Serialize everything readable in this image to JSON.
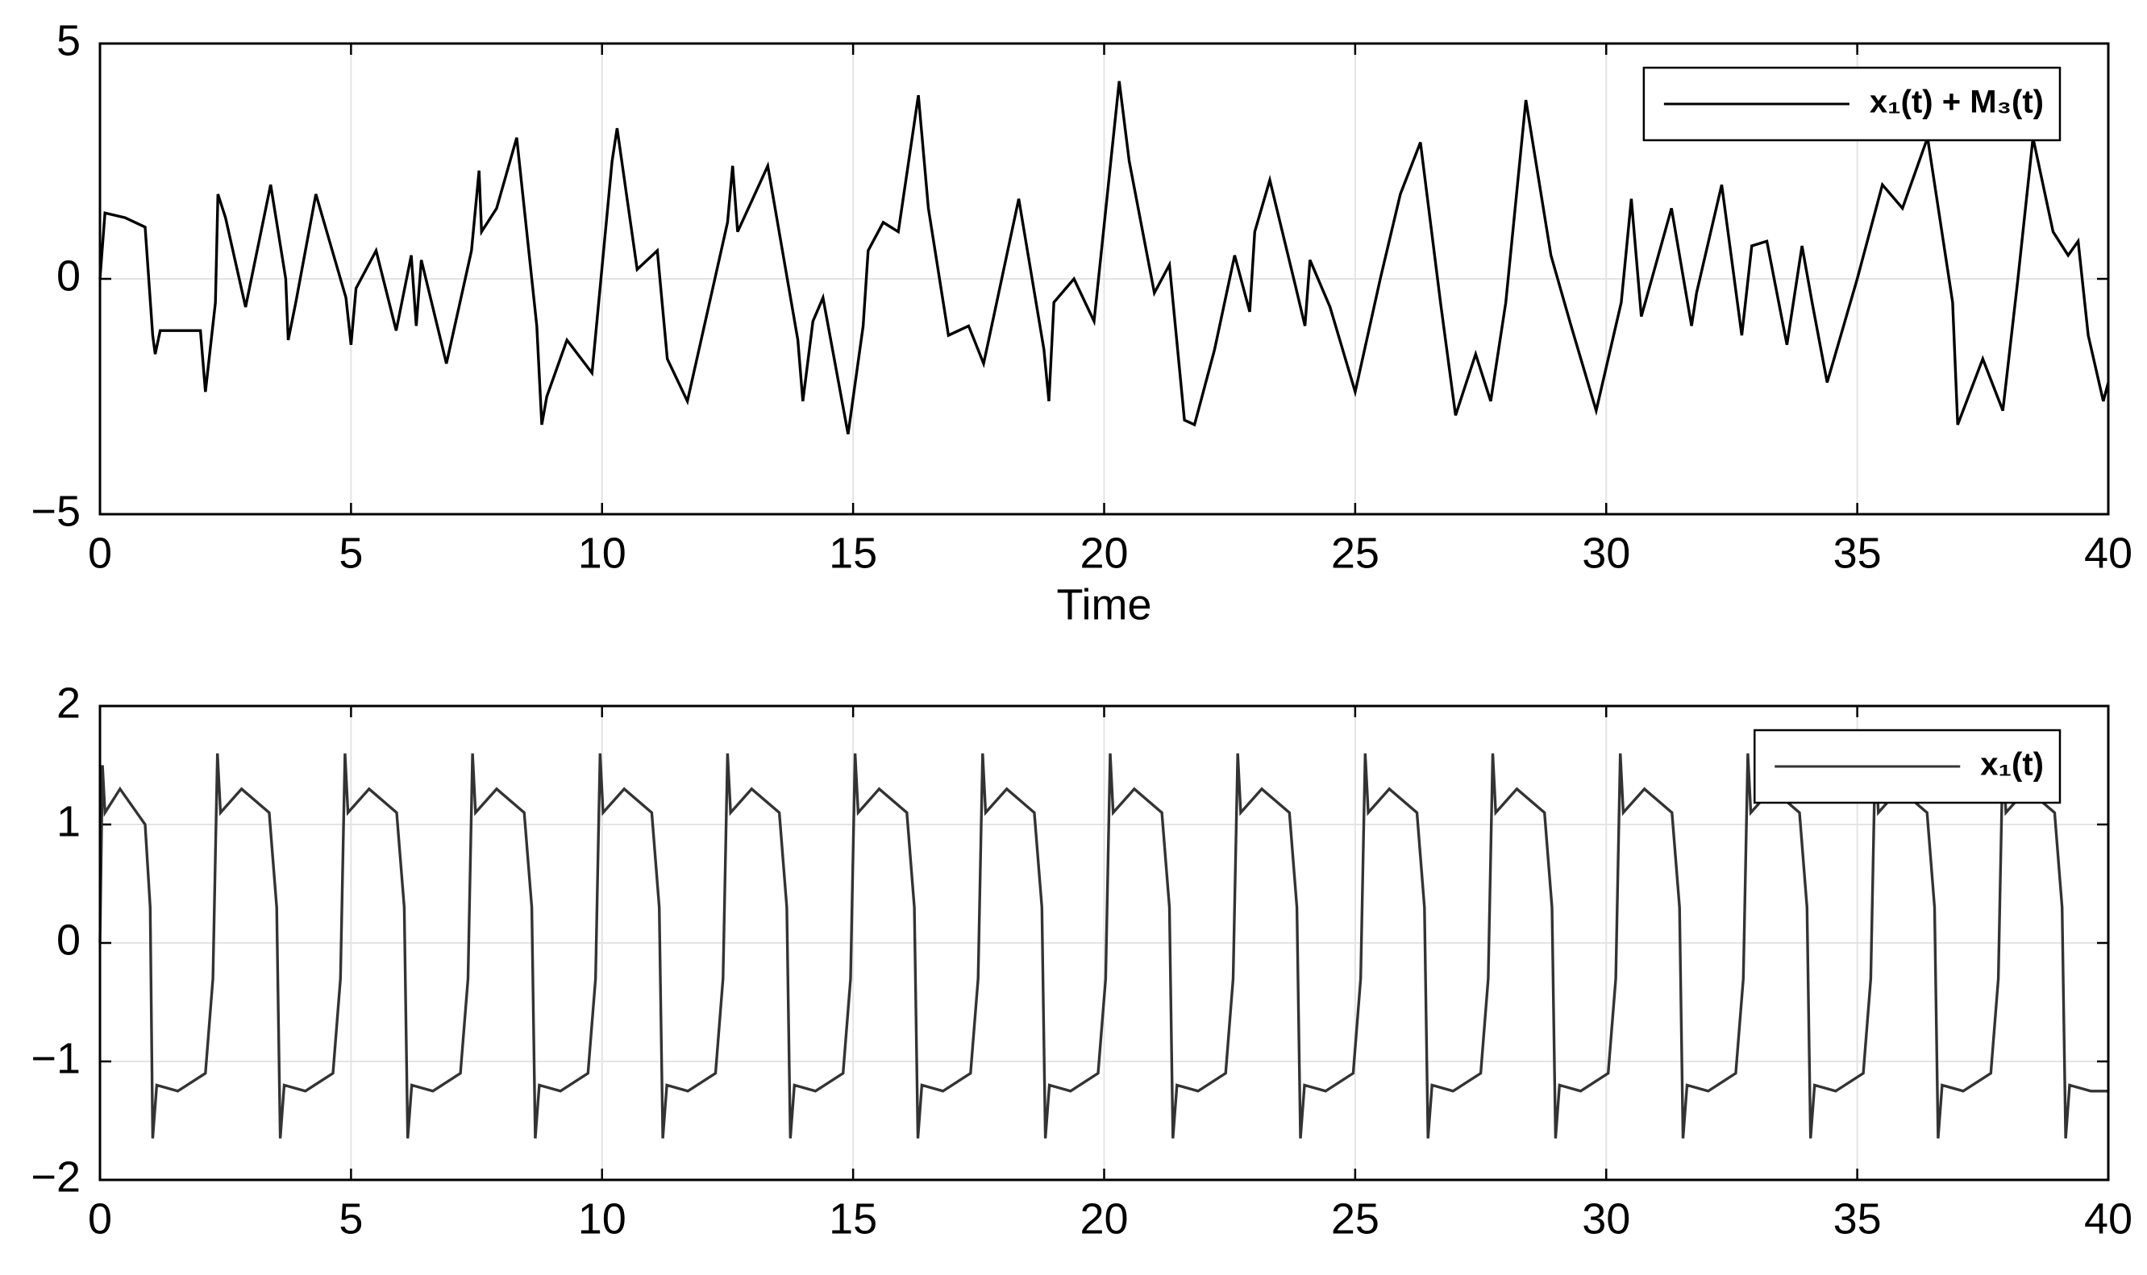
{
  "chart_data": [
    {
      "type": "line",
      "xlabel": "Time",
      "xlim": [
        0,
        40
      ],
      "ylim": [
        -5,
        5
      ],
      "xticks": [
        0,
        5,
        10,
        15,
        20,
        25,
        30,
        35,
        40
      ],
      "yticks": [
        {
          "value": -5,
          "label": "−5"
        },
        0,
        5
      ],
      "grid": true,
      "legend": "upper right",
      "series": [
        {
          "name": "x₁(t) + M₃(t)",
          "color": "#000000",
          "x": [
            0,
            0.1,
            0.5,
            0.9,
            1.05,
            1.1,
            1.2,
            2.0,
            2.1,
            2.3,
            2.35,
            2.5,
            2.9,
            3.4,
            3.7,
            3.75,
            3.9,
            4.3,
            4.9,
            5.0,
            5.1,
            5.5,
            5.9,
            6.2,
            6.3,
            6.4,
            6.9,
            7.4,
            7.55,
            7.6,
            7.9,
            8.3,
            8.7,
            8.8,
            8.9,
            9.3,
            9.8,
            10.2,
            10.3,
            10.7,
            11.1,
            11.3,
            11.7,
            12.5,
            12.6,
            12.7,
            13.3,
            13.9,
            14.0,
            14.2,
            14.4,
            14.9,
            15.2,
            15.3,
            15.6,
            15.9,
            16.3,
            16.5,
            16.9,
            17.3,
            17.6,
            17.7,
            18.3,
            18.8,
            18.9,
            19.0,
            19.4,
            19.8,
            20.3,
            20.5,
            21.0,
            21.3,
            21.6,
            21.8,
            22.2,
            22.6,
            22.9,
            23.0,
            23.3,
            23.8,
            24.0,
            24.1,
            24.5,
            25.0,
            25.5,
            25.9,
            26.3,
            26.7,
            27.0,
            27.4,
            27.7,
            28.0,
            28.4,
            28.9,
            29.3,
            29.8,
            30.3,
            30.5,
            30.7,
            31.3,
            31.7,
            31.8,
            32.3,
            32.7,
            32.9,
            33.2,
            33.6,
            33.9,
            34.1,
            34.4,
            35.0,
            35.5,
            35.9,
            36.4,
            36.9,
            37.0,
            37.5,
            37.9,
            38.2,
            38.5,
            38.9,
            39.2,
            39.4,
            39.6,
            39.9,
            40.0
          ],
          "values": [
            0,
            1.4,
            1.3,
            1.1,
            -1.2,
            -1.6,
            -1.1,
            -1.1,
            -2.4,
            -0.5,
            1.8,
            1.3,
            -0.6,
            2.0,
            0,
            -1.3,
            -0.5,
            1.8,
            -0.4,
            -1.4,
            -0.2,
            0.6,
            -1.1,
            0.5,
            -1.0,
            0.4,
            -1.8,
            0.6,
            2.3,
            1.0,
            1.5,
            3.0,
            -1.0,
            -3.1,
            -2.5,
            -1.3,
            -2.0,
            2.5,
            3.2,
            0.2,
            0.6,
            -1.7,
            -2.6,
            1.2,
            2.4,
            1.0,
            2.4,
            -1.3,
            -2.6,
            -0.9,
            -0.4,
            -3.3,
            -1.0,
            0.6,
            1.2,
            1.0,
            3.9,
            1.5,
            -1.2,
            -1.0,
            -1.8,
            -1.3,
            1.7,
            -1.5,
            -2.6,
            -0.5,
            0,
            -0.9,
            4.2,
            2.5,
            -0.3,
            0.3,
            -3.0,
            -3.1,
            -1.5,
            0.5,
            -0.7,
            1.0,
            2.1,
            -0.1,
            -1.0,
            0.4,
            -0.6,
            -2.4,
            0,
            1.8,
            2.9,
            -0.5,
            -2.9,
            -1.6,
            -2.6,
            -0.5,
            3.8,
            0.5,
            -1.0,
            -2.8,
            -0.5,
            1.7,
            -0.8,
            1.5,
            -1.0,
            -0.3,
            2.0,
            -1.2,
            0.7,
            0.8,
            -1.4,
            0.7,
            -0.5,
            -2.2,
            0,
            2.0,
            1.5,
            3.0,
            -0.5,
            -3.1,
            -1.7,
            -2.8,
            0,
            3.0,
            1.0,
            0.5,
            0.8,
            -1.2,
            -2.6,
            -2.2
          ]
        }
      ]
    },
    {
      "type": "line",
      "xlim": [
        0,
        40
      ],
      "ylim": [
        -2,
        2
      ],
      "xticks": [
        0,
        5,
        10,
        15,
        20,
        25,
        30,
        35,
        40
      ],
      "yticks": [
        {
          "value": -2,
          "label": "−2"
        },
        {
          "value": -1,
          "label": "−1"
        },
        0,
        1,
        2
      ],
      "grid": true,
      "legend": "upper right",
      "series": [
        {
          "name": "x₁(t)",
          "color": "#333333",
          "x": [
            0,
            0.05,
            0.1,
            0.4,
            0.9,
            1.0,
            1.05,
            1.13,
            1.55,
            2.1,
            2.25,
            2.34,
            2.4,
            2.82,
            3.37,
            3.52,
            3.59,
            3.67,
            4.09,
            4.64,
            4.79,
            4.88,
            4.94,
            5.36,
            5.91,
            6.06,
            6.13,
            6.21,
            6.63,
            7.18,
            7.33,
            7.42,
            7.48,
            7.9,
            8.45,
            8.6,
            8.67,
            8.75,
            9.17,
            9.72,
            9.87,
            9.96,
            10.02,
            10.44,
            10.99,
            11.14,
            11.21,
            11.29,
            11.71,
            12.26,
            12.41,
            12.5,
            12.56,
            12.98,
            13.53,
            13.68,
            13.75,
            13.83,
            14.25,
            14.8,
            14.95,
            15.04,
            15.1,
            15.52,
            16.07,
            16.22,
            16.29,
            16.37,
            16.79,
            17.34,
            17.49,
            17.58,
            17.64,
            18.06,
            18.61,
            18.76,
            18.83,
            18.91,
            19.33,
            19.88,
            20.03,
            20.12,
            20.18,
            20.6,
            21.15,
            21.3,
            21.37,
            21.45,
            21.87,
            22.42,
            22.57,
            22.66,
            22.72,
            23.14,
            23.69,
            23.84,
            23.91,
            23.99,
            24.41,
            24.96,
            25.11,
            25.2,
            25.26,
            25.68,
            26.23,
            26.38,
            26.45,
            26.53,
            26.95,
            27.5,
            27.65,
            27.74,
            27.8,
            28.22,
            28.77,
            28.92,
            28.99,
            29.07,
            29.49,
            30.04,
            30.19,
            30.28,
            30.34,
            30.76,
            31.31,
            31.46,
            31.53,
            31.61,
            32.03,
            32.58,
            32.73,
            32.82,
            32.88,
            33.3,
            33.85,
            34.0,
            34.07,
            34.15,
            34.57,
            35.12,
            35.27,
            35.36,
            35.42,
            35.84,
            36.39,
            36.54,
            36.61,
            36.69,
            37.11,
            37.66,
            37.81,
            37.9,
            37.96,
            38.38,
            38.93,
            39.08,
            39.15,
            39.23,
            39.65,
            40.0
          ],
          "values": [
            0,
            1.5,
            1.1,
            1.3,
            1.0,
            0.3,
            -1.65,
            -1.2,
            -1.25,
            -1.1,
            -0.3,
            1.6,
            1.1,
            1.3,
            1.1,
            0.3,
            -1.65,
            -1.2,
            -1.25,
            -1.1,
            -0.3,
            1.6,
            1.1,
            1.3,
            1.1,
            0.3,
            -1.65,
            -1.2,
            -1.25,
            -1.1,
            -0.3,
            1.6,
            1.1,
            1.3,
            1.1,
            0.3,
            -1.65,
            -1.2,
            -1.25,
            -1.1,
            -0.3,
            1.6,
            1.1,
            1.3,
            1.1,
            0.3,
            -1.65,
            -1.2,
            -1.25,
            -1.1,
            -0.3,
            1.6,
            1.1,
            1.3,
            1.1,
            0.3,
            -1.65,
            -1.2,
            -1.25,
            -1.1,
            -0.3,
            1.6,
            1.1,
            1.3,
            1.1,
            0.3,
            -1.65,
            -1.2,
            -1.25,
            -1.1,
            -0.3,
            1.6,
            1.1,
            1.3,
            1.1,
            0.3,
            -1.65,
            -1.2,
            -1.25,
            -1.1,
            -0.3,
            1.6,
            1.1,
            1.3,
            1.1,
            0.3,
            -1.65,
            -1.2,
            -1.25,
            -1.1,
            -0.3,
            1.6,
            1.1,
            1.3,
            1.1,
            0.3,
            -1.65,
            -1.2,
            -1.25,
            -1.1,
            -0.3,
            1.6,
            1.1,
            1.3,
            1.1,
            0.3,
            -1.65,
            -1.2,
            -1.25,
            -1.1,
            -0.3,
            1.6,
            1.1,
            1.3,
            1.1,
            0.3,
            -1.65,
            -1.2,
            -1.25,
            -1.1,
            -0.3,
            1.6,
            1.1,
            1.3,
            1.1,
            0.3,
            -1.65,
            -1.2,
            -1.25,
            -1.1,
            -0.3,
            1.6,
            1.1,
            1.3,
            1.1,
            0.3,
            -1.65,
            -1.2,
            -1.25,
            -1.1,
            -0.3,
            1.6,
            1.1,
            1.3,
            1.1,
            0.3,
            -1.65,
            -1.2,
            -1.25,
            -1.1,
            -0.3,
            1.6,
            1.1,
            1.3,
            1.1,
            0.3,
            -1.65,
            -1.2,
            -1.25,
            -1.25
          ]
        }
      ]
    }
  ]
}
